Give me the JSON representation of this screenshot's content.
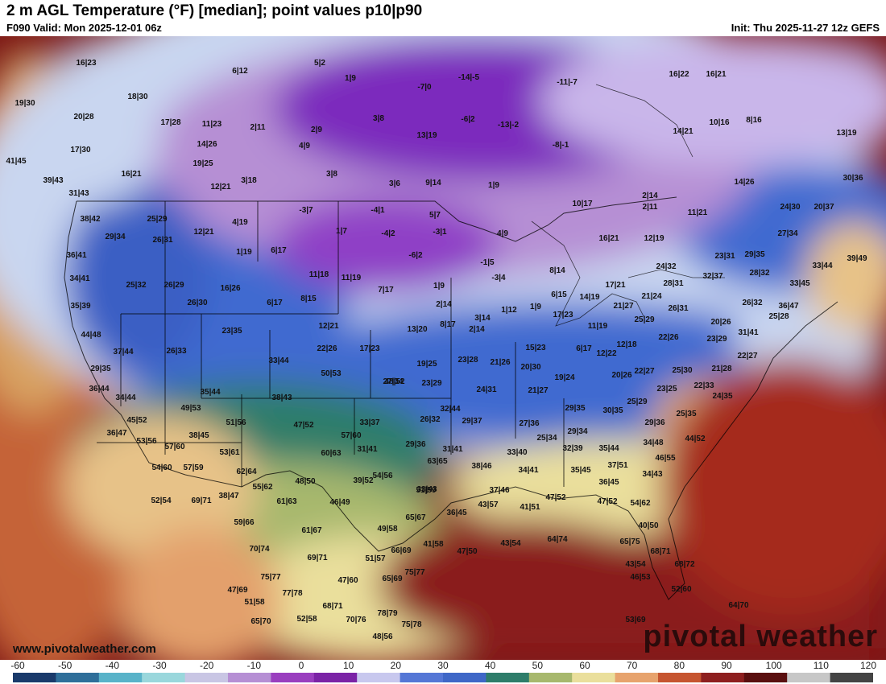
{
  "header": {
    "title": "2 m AGL Temperature (°F) [median]; point values p10|p90",
    "valid": "F090 Valid: Mon 2025-12-01 06z",
    "init": "Init: Thu 2025-11-27 12z GEFS"
  },
  "footer": {
    "website": "www.pivotalweather.com",
    "brand": "pivotal weather"
  },
  "colorbar": {
    "ticks": [
      "-60",
      "-50",
      "-40",
      "-30",
      "-20",
      "-10",
      "0",
      "10",
      "20",
      "30",
      "40",
      "50",
      "60",
      "70",
      "80",
      "90",
      "100",
      "110",
      "120"
    ],
    "colors": [
      "#1a3a6b",
      "#2f6f9a",
      "#59b3c9",
      "#9ad7dc",
      "#c9c6e4",
      "#b68fd4",
      "#9a3fbf",
      "#7b23a6",
      "#c8c8ee",
      "#5577d6",
      "#3f67c7",
      "#2e7d6a",
      "#a7b86d",
      "#eadf9c",
      "#e7a36d",
      "#c65530",
      "#8e1f1f",
      "#5a0f0f",
      "#c7c7c7",
      "#444444"
    ],
    "unit": "°F"
  },
  "map": {
    "colors": {
      "deep_purple": "#7c2bbd",
      "purple": "#a460d6",
      "lavender": "#c9b6ea",
      "pale_blue": "#c9d6f0",
      "blue": "#3f6ad0",
      "teal": "#2e7d6a",
      "green": "#8fa85a",
      "yellow": "#e8d89a",
      "orange": "#e3a06c",
      "rust": "#b84a2e",
      "red": "#8a1c1c",
      "dark_red": "#5a0d0d"
    },
    "points": [
      "16|23",
      "6|12",
      "5|2",
      "1|9",
      "-7|0",
      "-14|-5",
      "-11|-7",
      "16|22",
      "16|21",
      "19|30",
      "18|30",
      "20|28",
      "17|28",
      "11|23",
      "2|11",
      "2|9",
      "3|8",
      "13|19",
      "-6|2",
      "-13|-2",
      "10|16",
      "8|16",
      "14|21",
      "13|19",
      "17|30",
      "14|26",
      "4|9",
      "-8|-1",
      "41|45",
      "19|25",
      "39|43",
      "16|21",
      "12|21",
      "3|18",
      "3|8",
      "3|6",
      "9|14",
      "1|9",
      "2|14",
      "14|26",
      "30|36",
      "31|43",
      "38|42",
      "25|29",
      "4|19",
      "-3|7",
      "-4|1",
      "5|7",
      "1|7",
      "10|17",
      "2|11",
      "11|21",
      "24|30",
      "20|37",
      "29|34",
      "26|31",
      "12|21",
      "-4|2",
      "-3|1",
      "4|9",
      "16|21",
      "12|19",
      "27|34",
      "36|41",
      "1|19",
      "6|17",
      "-6|2",
      "-1|5",
      "8|14",
      "24|32",
      "23|31",
      "29|35",
      "33|44",
      "39|49",
      "34|41",
      "25|32",
      "26|29",
      "16|26",
      "11|18",
      "11|19",
      "7|17",
      "1|9",
      "-3|4",
      "6|15",
      "17|21",
      "28|31",
      "32|37",
      "28|32",
      "33|45",
      "35|39",
      "26|30",
      "6|17",
      "8|15",
      "2|14",
      "3|14",
      "1|12",
      "1|9",
      "14|19",
      "21|27",
      "21|24",
      "26|31",
      "26|32",
      "36|47",
      "44|48",
      "23|35",
      "12|21",
      "13|20",
      "8|17",
      "2|14",
      "17|23",
      "11|19",
      "25|29",
      "20|26",
      "25|28",
      "31|41",
      "37|44",
      "26|33",
      "22|26",
      "17|23",
      "19|25",
      "23|28",
      "21|26",
      "15|23",
      "6|17",
      "12|18",
      "22|26",
      "23|29",
      "22|27",
      "29|35",
      "33|44",
      "50|53",
      "27|34",
      "20|30",
      "12|22",
      "20|26",
      "22|27",
      "25|30",
      "21|28",
      "36|44",
      "48|52",
      "23|29",
      "24|31",
      "21|27",
      "19|24",
      "23|25",
      "22|33",
      "35|44",
      "38|43",
      "34|44",
      "49|53",
      "51|56",
      "33|37",
      "26|32",
      "29|37",
      "29|35",
      "25|29",
      "24|35",
      "45|52",
      "47|52",
      "32|44",
      "27|36",
      "30|35",
      "25|35",
      "36|47",
      "53|56",
      "57|60",
      "25|34",
      "29|34",
      "29|36",
      "38|45",
      "57|60",
      "60|63",
      "31|41",
      "29|36",
      "31|41",
      "33|40",
      "32|39",
      "35|44",
      "34|48",
      "44|52",
      "53|61",
      "63|65",
      "38|46",
      "34|41",
      "35|45",
      "37|51",
      "46|55",
      "54|60",
      "57|59",
      "62|64",
      "54|56",
      "34|43",
      "55|62",
      "48|50",
      "39|52",
      "33|43",
      "37|46",
      "36|45",
      "51|59",
      "38|47",
      "61|63",
      "46|49",
      "36|45",
      "43|57",
      "41|51",
      "47|52",
      "47|52",
      "54|62",
      "59|66",
      "65|67",
      "40|50",
      "61|67",
      "49|58",
      "43|54",
      "64|74",
      "70|74",
      "66|69",
      "41|58",
      "47|50",
      "65|75",
      "68|71",
      "69|71",
      "51|57",
      "43|54",
      "68|72",
      "75|77",
      "65|69",
      "46|53",
      "47|60",
      "75|77",
      "52|60",
      "47|69",
      "77|78",
      "68|71",
      "64|70",
      "51|58",
      "78|79",
      "65|70",
      "52|58",
      "70|76",
      "75|78",
      "48|56",
      "53|69",
      "52|54",
      "69|71"
    ]
  }
}
